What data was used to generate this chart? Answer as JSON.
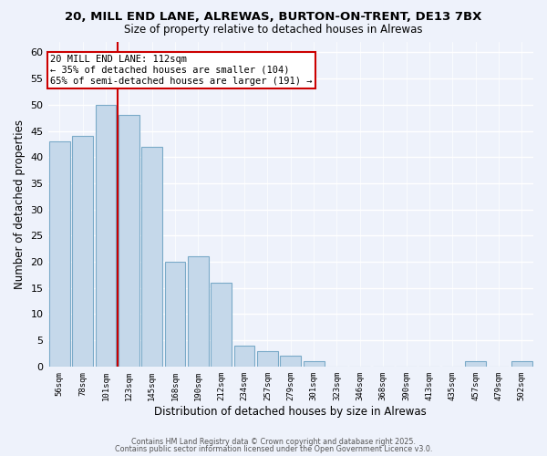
{
  "title": "20, MILL END LANE, ALREWAS, BURTON-ON-TRENT, DE13 7BX",
  "subtitle": "Size of property relative to detached houses in Alrewas",
  "xlabel": "Distribution of detached houses by size in Alrewas",
  "ylabel": "Number of detached properties",
  "bar_color": "#c5d8ea",
  "bar_edge_color": "#7aaac8",
  "bg_color": "#eef2fb",
  "grid_color": "#ffffff",
  "categories": [
    "56sqm",
    "78sqm",
    "101sqm",
    "123sqm",
    "145sqm",
    "168sqm",
    "190sqm",
    "212sqm",
    "234sqm",
    "257sqm",
    "279sqm",
    "301sqm",
    "323sqm",
    "346sqm",
    "368sqm",
    "390sqm",
    "413sqm",
    "435sqm",
    "457sqm",
    "479sqm",
    "502sqm"
  ],
  "values": [
    43,
    44,
    50,
    48,
    42,
    20,
    21,
    16,
    4,
    3,
    2,
    1,
    0,
    0,
    0,
    0,
    0,
    0,
    1,
    0,
    1
  ],
  "vline_x_index": 2.5,
  "vline_color": "#cc0000",
  "annotation_line1": "20 MILL END LANE: 112sqm",
  "annotation_line2": "← 35% of detached houses are smaller (104)",
  "annotation_line3": "65% of semi-detached houses are larger (191) →",
  "annotation_box_color": "#ffffff",
  "annotation_box_edge": "#cc0000",
  "ylim": [
    0,
    62
  ],
  "yticks": [
    0,
    5,
    10,
    15,
    20,
    25,
    30,
    35,
    40,
    45,
    50,
    55,
    60
  ],
  "footer1": "Contains HM Land Registry data © Crown copyright and database right 2025.",
  "footer2": "Contains public sector information licensed under the Open Government Licence v3.0."
}
